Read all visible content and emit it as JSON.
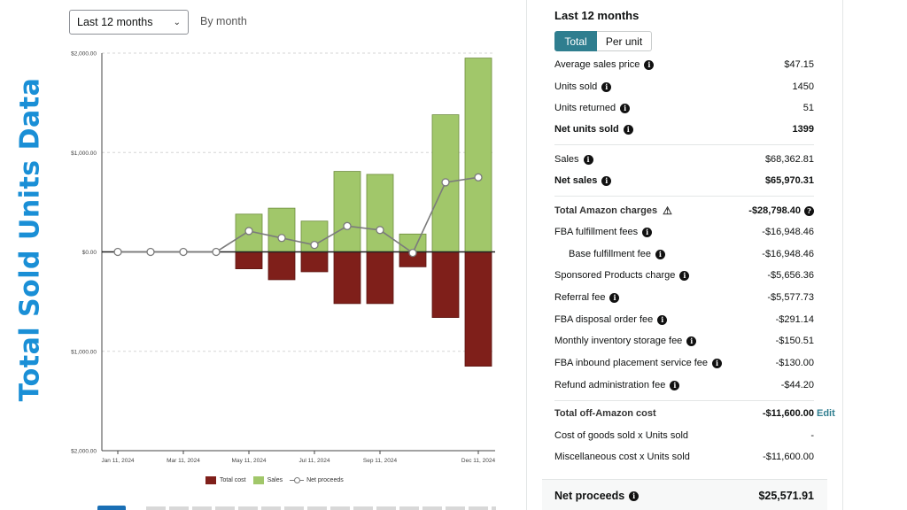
{
  "side_title": "Total Sold Units Data",
  "controls": {
    "range_value": "Last 12 months",
    "granularity_label": "By month"
  },
  "chart_data": {
    "type": "bar",
    "x_tick_labels": [
      "Jan 11, 2024",
      "Mar 11, 2024",
      "May 11, 2024",
      "Jul 11, 2024",
      "Sep 11, 2024",
      "Dec 11, 2024"
    ],
    "y_tick_labels": [
      "$2,000.00",
      "$1,000.00",
      "$0.00",
      "$1,000.00",
      "$2,000.00"
    ],
    "ylim": [
      -2000,
      2000
    ],
    "periods": 12,
    "series": [
      {
        "name": "Total cost",
        "color": "#7f1f1a",
        "values": [
          0,
          0,
          0,
          0,
          -170,
          -280,
          -200,
          -520,
          -520,
          -150,
          -660,
          -1150
        ]
      },
      {
        "name": "Sales",
        "color": "#a1c76a",
        "values": [
          0,
          0,
          0,
          0,
          380,
          440,
          310,
          810,
          780,
          180,
          1380,
          1950
        ]
      },
      {
        "name": "Net proceeds",
        "color": "#7b7b7b",
        "values": [
          0,
          0,
          0,
          0,
          210,
          140,
          70,
          260,
          220,
          -10,
          700,
          750
        ]
      }
    ],
    "grid": true,
    "legend_position": "bottom"
  },
  "panel": {
    "title": "Last 12 months",
    "toggle_total": "Total",
    "toggle_per_unit": "Per unit",
    "rows": [
      {
        "label": "Average sales price",
        "value": "$47.15"
      },
      {
        "label": "Units sold",
        "value": "1450"
      },
      {
        "label": "Units returned",
        "value": "51"
      },
      {
        "label": "Net units sold",
        "value": "1399"
      },
      {
        "label": "Sales",
        "value": "$68,362.81"
      },
      {
        "label": "Net sales",
        "value": "$65,970.31"
      },
      {
        "label": "Total Amazon charges",
        "value": "-$28,798.40"
      },
      {
        "label": "FBA fulfillment fees",
        "value": "-$16,948.46"
      },
      {
        "label": "Base fulfillment fee",
        "value": "-$16,948.46"
      },
      {
        "label": "Sponsored Products charge",
        "value": "-$5,656.36"
      },
      {
        "label": "Referral fee",
        "value": "-$5,577.73"
      },
      {
        "label": "FBA disposal order fee",
        "value": "-$291.14"
      },
      {
        "label": "Monthly inventory storage fee",
        "value": "-$150.51"
      },
      {
        "label": "FBA inbound placement service fee",
        "value": "-$130.00"
      },
      {
        "label": "Refund administration fee",
        "value": "-$44.20"
      },
      {
        "label": "Total off-Amazon cost",
        "value": "-$11,600.00"
      },
      {
        "label": "Cost of goods sold x Units sold",
        "value": "-"
      },
      {
        "label": "Miscellaneous cost x Units sold",
        "value": "-$11,600.00"
      }
    ],
    "edit_label": "Edit",
    "net_proceeds_label": "Net proceeds",
    "net_proceeds_value": "$25,571.91"
  }
}
